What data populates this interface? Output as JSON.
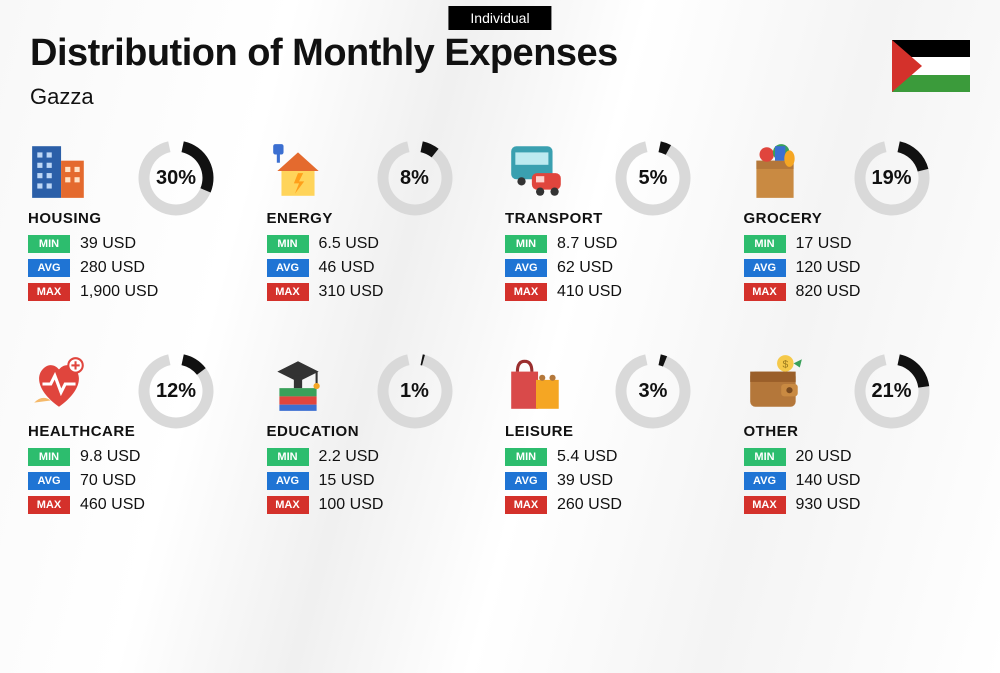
{
  "tag": "Individual",
  "title": "Distribution of Monthly Expenses",
  "subtitle": "Gazza",
  "currency": "USD",
  "flag": {
    "stripes": [
      "#000000",
      "#ffffff",
      "#3b9b3b"
    ],
    "triangle": "#d4312b"
  },
  "donut": {
    "track": "#d9d9d9",
    "arc": "#111111",
    "stroke_width": 11,
    "radius": 32,
    "gap_deg": 24
  },
  "badges": {
    "min": {
      "label": "MIN",
      "color": "#2dbd6e"
    },
    "avg": {
      "label": "AVG",
      "color": "#1f74d4"
    },
    "max": {
      "label": "MAX",
      "color": "#d4312b"
    }
  },
  "categories": [
    {
      "key": "housing",
      "name": "HOUSING",
      "percent": 30,
      "min": "39",
      "avg": "280",
      "max": "1,900",
      "icon": "buildings"
    },
    {
      "key": "energy",
      "name": "ENERGY",
      "percent": 8,
      "min": "6.5",
      "avg": "46",
      "max": "310",
      "icon": "energy-house"
    },
    {
      "key": "transport",
      "name": "TRANSPORT",
      "percent": 5,
      "min": "8.7",
      "avg": "62",
      "max": "410",
      "icon": "bus-car"
    },
    {
      "key": "grocery",
      "name": "GROCERY",
      "percent": 19,
      "min": "17",
      "avg": "120",
      "max": "820",
      "icon": "grocery-bag"
    },
    {
      "key": "healthcare",
      "name": "HEALTHCARE",
      "percent": 12,
      "min": "9.8",
      "avg": "70",
      "max": "460",
      "icon": "health-heart"
    },
    {
      "key": "education",
      "name": "EDUCATION",
      "percent": 1,
      "min": "2.2",
      "avg": "15",
      "max": "100",
      "icon": "books-cap"
    },
    {
      "key": "leisure",
      "name": "LEISURE",
      "percent": 3,
      "min": "5.4",
      "avg": "39",
      "max": "260",
      "icon": "shopping-bags"
    },
    {
      "key": "other",
      "name": "OTHER",
      "percent": 21,
      "min": "20",
      "avg": "140",
      "max": "930",
      "icon": "wallet"
    }
  ]
}
